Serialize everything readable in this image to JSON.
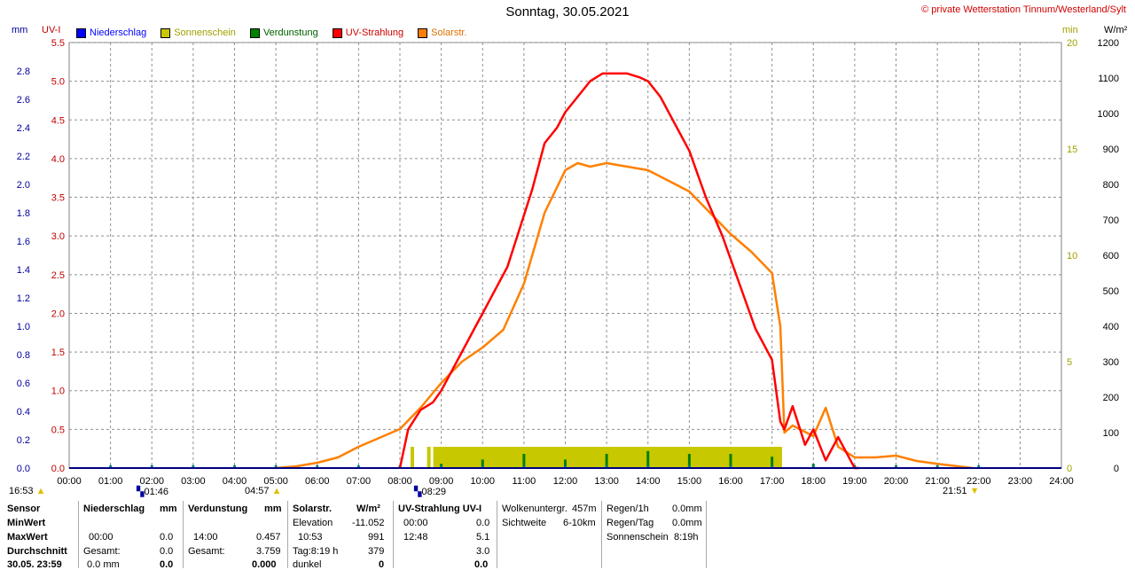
{
  "header": {
    "title": "Sonntag, 30.05.2021",
    "credit": "© private Wetterstation Tinnum/Westerland/Sylt"
  },
  "legend": [
    {
      "label": "Niederschlag",
      "color": "#0000ff"
    },
    {
      "label": "Sonnenschein",
      "color": "#c8c800"
    },
    {
      "label": "Verdunstung",
      "color": "#008000"
    },
    {
      "label": "UV-Strahlung",
      "color": "#ff0000"
    },
    {
      "label": "Solarstr.",
      "color": "#ff8000"
    }
  ],
  "units": {
    "mm": "mm",
    "uv": "UV-I",
    "min": "min",
    "wm2": "W/m²"
  },
  "markers": {
    "left_time": "16:53",
    "moonset": "01:46",
    "sunrise": "04:57",
    "sun_event2": "08:29",
    "sunset": "21:51"
  },
  "chart_data": {
    "type": "line",
    "x_ticks": [
      "00:00",
      "01:00",
      "02:00",
      "03:00",
      "04:00",
      "05:00",
      "06:00",
      "07:00",
      "08:00",
      "09:00",
      "10:00",
      "11:00",
      "12:00",
      "13:00",
      "14:00",
      "15:00",
      "16:00",
      "17:00",
      "18:00",
      "19:00",
      "20:00",
      "21:00",
      "22:00",
      "23:00",
      "24:00"
    ],
    "xlim": [
      0,
      24
    ],
    "axes": {
      "mm": {
        "ticks": [
          "0.0",
          "0.2",
          "0.4",
          "0.6",
          "0.8",
          "1.0",
          "1.2",
          "1.4",
          "1.6",
          "1.8",
          "2.0",
          "2.2",
          "2.4",
          "2.6",
          "2.8"
        ],
        "ylim": [
          0,
          3.0
        ],
        "color": "#0000a0"
      },
      "uv": {
        "ticks": [
          "0.0",
          "0.5",
          "1.0",
          "1.5",
          "2.0",
          "2.5",
          "3.0",
          "3.5",
          "4.0",
          "4.5",
          "5.0",
          "5.5"
        ],
        "ylim": [
          0,
          5.5
        ],
        "color": "#c00000"
      },
      "min": {
        "ticks": [
          "0",
          "5",
          "10",
          "15",
          "20"
        ],
        "ylim": [
          0,
          20
        ],
        "color": "#a0a000"
      },
      "wm2": {
        "ticks": [
          "0",
          "100",
          "200",
          "300",
          "400",
          "500",
          "600",
          "700",
          "800",
          "900",
          "1000",
          "1100",
          "1200"
        ],
        "ylim": [
          0,
          1200
        ],
        "color": "#000000"
      }
    },
    "grid": true,
    "series": [
      {
        "name": "UV-Strahlung",
        "axis": "uv",
        "color": "#ff0000",
        "x": [
          8.0,
          8.2,
          8.5,
          8.8,
          9.0,
          9.2,
          9.5,
          9.8,
          10.0,
          10.3,
          10.6,
          10.9,
          11.2,
          11.5,
          11.8,
          12.0,
          12.3,
          12.6,
          12.9,
          13.2,
          13.5,
          13.8,
          14.0,
          14.3,
          14.6,
          15.0,
          15.4,
          15.8,
          16.2,
          16.6,
          17.0,
          17.2,
          17.3,
          17.5,
          17.8,
          18.0,
          18.3,
          18.6,
          18.9,
          19.0,
          19.1
        ],
        "y": [
          0.0,
          0.5,
          0.75,
          0.85,
          1.0,
          1.2,
          1.5,
          1.8,
          2.0,
          2.3,
          2.6,
          3.1,
          3.6,
          4.2,
          4.4,
          4.6,
          4.8,
          5.0,
          5.1,
          5.1,
          5.1,
          5.05,
          5.0,
          4.8,
          4.5,
          4.1,
          3.5,
          3.0,
          2.4,
          1.8,
          1.4,
          0.6,
          0.5,
          0.8,
          0.3,
          0.5,
          0.1,
          0.4,
          0.1,
          0.0,
          0.0
        ]
      },
      {
        "name": "Solarstr.",
        "axis": "wm2",
        "color": "#ff8000",
        "x": [
          5.0,
          5.5,
          6.0,
          6.5,
          7.0,
          7.5,
          8.0,
          8.5,
          9.0,
          9.5,
          10.0,
          10.5,
          11.0,
          11.5,
          12.0,
          12.3,
          12.6,
          13.0,
          13.5,
          14.0,
          14.5,
          15.0,
          15.5,
          16.0,
          16.5,
          17.0,
          17.2,
          17.3,
          17.5,
          18.0,
          18.3,
          18.6,
          19.0,
          19.5,
          20.0,
          20.5,
          21.0,
          21.5,
          21.85
        ],
        "y": [
          0,
          5,
          15,
          30,
          60,
          85,
          110,
          170,
          240,
          300,
          340,
          390,
          520,
          720,
          840,
          860,
          850,
          860,
          850,
          840,
          810,
          780,
          720,
          660,
          610,
          550,
          400,
          100,
          120,
          90,
          170,
          60,
          30,
          30,
          35,
          20,
          12,
          5,
          0
        ]
      },
      {
        "name": "Sonnenschein",
        "axis": "min",
        "type": "bar",
        "x": [
          8.3,
          8.7,
          8.85,
          9.0,
          17.2,
          17.4
        ],
        "y": [
          1.0,
          1.0,
          1.0,
          1.0,
          1.0,
          0.0
        ]
      },
      {
        "name": "Verdunstung",
        "axis": "mm",
        "type": "bar",
        "x": [
          8.0,
          9.0,
          10.0,
          11.0,
          12.0,
          13.0,
          14.0,
          15.0,
          16.0,
          17.0,
          18.0,
          20.0,
          21.0
        ],
        "y": [
          0.01,
          0.03,
          0.06,
          0.1,
          0.06,
          0.1,
          0.12,
          0.1,
          0.1,
          0.08,
          0.03,
          0.01,
          0.01
        ]
      },
      {
        "name": "Niederschlag",
        "axis": "mm",
        "type": "bar",
        "x": [],
        "y": []
      }
    ],
    "sun_bar": {
      "from": 8.85,
      "to": 17.2,
      "level": 1.0
    }
  },
  "table": {
    "headers": {
      "sensor": "Sensor",
      "precip": "Niederschlag",
      "precip_unit": "mm",
      "evap": "Verdunstung",
      "evap_unit": "mm",
      "solar": "Solarstr.",
      "solar_unit": "W/m²",
      "uv": "UV-Strahlung UV-I"
    },
    "rows": {
      "min": "MinWert",
      "max": "MaxWert",
      "avg": "Durchschnitt",
      "date": "30.05. 23:59"
    },
    "precip": {
      "max_time": "00:00",
      "max_val": "0.0",
      "total_label": "Gesamt:",
      "total_val": "0.0",
      "last_val": "0.0 mm",
      "last_bold": "0.0"
    },
    "evap": {
      "max_time": "14:00",
      "max_val": "0.457",
      "total_label": "Gesamt:",
      "total_val": "3.759",
      "last_bold": "0.000"
    },
    "solar": {
      "elev_label": "Elevation",
      "elev_val": "-11.052",
      "max_time": "10:53",
      "max_val": "991",
      "day_label": "Tag:8:19 h",
      "day_val": "379",
      "dark_label": "dunkel",
      "dark_val": "0"
    },
    "uvt": {
      "min_time": "00:00",
      "min_val": "0.0",
      "max_time": "12:48",
      "max_val": "5.1",
      "avg_val": "3.0",
      "last_val": "0.0"
    },
    "cloud": {
      "base_label": "Wolkenuntergr.",
      "base_val": "457m",
      "vis_label": "Sichtweite",
      "vis_val": "6-10km"
    },
    "rain": {
      "hour_label": "Regen/1h",
      "hour_val": "0.0mm",
      "day_label": "Regen/Tag",
      "day_val": "0.0mm",
      "sun_label": "Sonnenschein",
      "sun_val": "8:19h"
    }
  }
}
